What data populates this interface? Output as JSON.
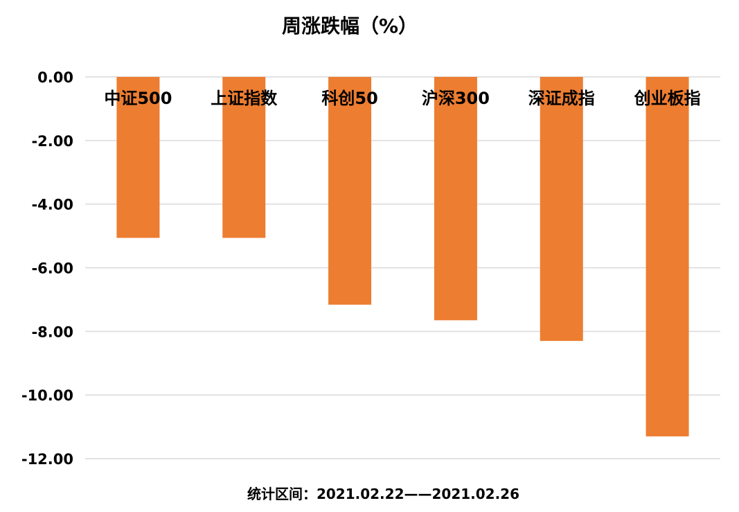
{
  "chart_data": {
    "type": "bar",
    "title": "周涨跌幅（%）",
    "categories": [
      "中证500",
      "上证指数",
      "科创50",
      "沪深300",
      "深证成指",
      "创业板指"
    ],
    "series": [
      {
        "values": [
          -5.06,
          -5.06,
          -7.16,
          -7.65,
          -8.3,
          -11.3
        ]
      }
    ],
    "ylim": [
      -12,
      0
    ],
    "yticks": [
      0,
      -2,
      -4,
      -6,
      -8,
      -10,
      -12
    ],
    "ytick_labels": [
      "0.00",
      "-2.00",
      "-4.00",
      "-6.00",
      "-8.00",
      "-10.00",
      "-12.00"
    ],
    "grid": true,
    "legend": "none",
    "bar_color": "#ED7D31",
    "grid_color": "#D9D9D9"
  },
  "footnote": "统计区间：2021.02.22——2021.02.26"
}
